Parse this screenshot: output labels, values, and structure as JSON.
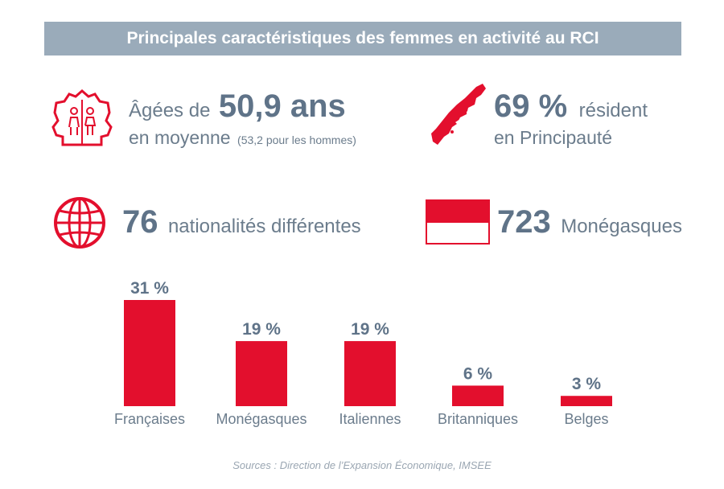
{
  "title": "Principales caractéristiques des femmes en activité au RCI",
  "stats": {
    "age": {
      "prefix": "Âgées de",
      "value": "50,9 ans",
      "line2": "en moyenne",
      "note": "(53,2 pour les hommes)",
      "icon": "house-family-icon"
    },
    "resident": {
      "value": "69 %",
      "label": "résident",
      "line2": "en Principauté",
      "icon": "monaco-map-icon"
    },
    "nationalities": {
      "value": "76",
      "label": "nationalités différentes",
      "icon": "globe-icon"
    },
    "monegasques": {
      "value": "723",
      "label": "Monégasques",
      "icon": "monaco-flag-icon"
    }
  },
  "chart_data": {
    "type": "bar",
    "categories": [
      "Françaises",
      "Monégasques",
      "Italiennes",
      "Britanniques",
      "Belges"
    ],
    "values": [
      31,
      19,
      19,
      6,
      3
    ],
    "value_labels": [
      "31 %",
      "19 %",
      "19 %",
      "6 %",
      "3 %"
    ],
    "ylim": [
      0,
      31
    ],
    "grid": false,
    "color": "#e30f2d"
  },
  "source": "Sources : Direction de l’Expansion Économique, IMSEE",
  "colors": {
    "accent": "#e30f2d",
    "text": "#6b7c8c",
    "band": "#9aabba"
  }
}
